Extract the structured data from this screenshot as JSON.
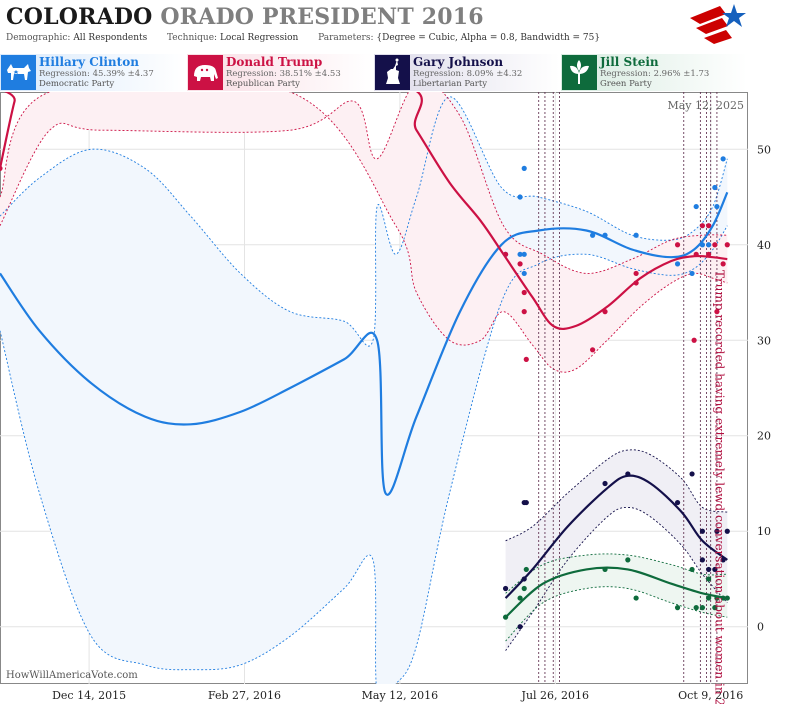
{
  "header": {
    "title_main": "COLORADO",
    "title_sub": "ORADO PRESIDENT 2016",
    "demographic_label": "Demographic:",
    "demographic_value": "All Respondents",
    "technique_label": "Technique:",
    "technique_value": "Local Regression",
    "parameters_label": "Parameters:",
    "parameters_value": "{Degree = Cubic, Alpha = 0.8, Bandwidth = 75}"
  },
  "logo": {
    "icon": "star-logo-icon",
    "colors": [
      "#cc0000",
      "#1560bd"
    ]
  },
  "legend": [
    {
      "name": "Hillary Clinton",
      "regression": "Regression: 45.39% ±4.37",
      "party": "Democratic Party",
      "color": "#1f7de0",
      "icon": "donkey-icon"
    },
    {
      "name": "Donald Trump",
      "regression": "Regression: 38.51% ±4.53",
      "party": "Republican Party",
      "color": "#cc1144",
      "icon": "elephant-icon"
    },
    {
      "name": "Gary Johnson",
      "regression": "Regression: 8.09% ±4.32",
      "party": "Libertarian Party",
      "color": "#14104a",
      "icon": "liberty-statue-icon"
    },
    {
      "name": "Jill Stein",
      "regression": "Regression: 2.96% ±1.73",
      "party": "Green Party",
      "color": "#0e6b3c",
      "icon": "leaf-icon"
    }
  ],
  "chart_data": {
    "type": "line",
    "date_label": "May 12, 2025",
    "watermark": "HowWillAmericaVote.com",
    "x_ticks": [
      "Dec 14, 2015",
      "Feb 27, 2016",
      "May 12, 2016",
      "Jul 26, 2016",
      "Oct 9, 2016"
    ],
    "x_range": [
      "2015-11-01",
      "2016-10-27"
    ],
    "y_ticks": [
      0,
      10,
      20,
      30,
      40,
      50
    ],
    "y_range": [
      -6,
      56
    ],
    "grid": true,
    "annotation": {
      "text": "Trump recorded having extremely lewd conversation about women in 2005",
      "date": "2016-10-07"
    },
    "event_lines": [
      "2016-07-18",
      "2016-07-21",
      "2016-07-25",
      "2016-07-28",
      "2016-09-26",
      "2016-10-04",
      "2016-10-07",
      "2016-10-09",
      "2016-10-12"
    ],
    "series": [
      {
        "name": "Hillary Clinton",
        "color": "#1f7de0",
        "trend": [
          [
            "2015-11-01",
            37
          ],
          [
            "2015-11-20",
            31
          ],
          [
            "2015-12-15",
            25.5
          ],
          [
            "2016-01-10",
            22
          ],
          [
            "2016-02-01",
            21.2
          ],
          [
            "2016-02-25",
            22.5
          ],
          [
            "2016-03-20",
            25
          ],
          [
            "2016-04-15",
            28
          ],
          [
            "2016-05-01",
            30
          ],
          [
            "2016-05-05",
            14
          ],
          [
            "2016-05-20",
            22
          ],
          [
            "2016-06-10",
            33
          ],
          [
            "2016-06-30",
            40
          ],
          [
            "2016-07-18",
            41.5
          ],
          [
            "2016-08-10",
            41.5
          ],
          [
            "2016-09-01",
            39.5
          ],
          [
            "2016-09-20",
            38.7
          ],
          [
            "2016-10-01",
            39.5
          ],
          [
            "2016-10-10",
            42
          ],
          [
            "2016-10-17",
            45.5
          ]
        ],
        "upper": [
          [
            "2015-11-01",
            43
          ],
          [
            "2015-11-20",
            47
          ],
          [
            "2015-12-15",
            50
          ],
          [
            "2016-01-10",
            48
          ],
          [
            "2016-02-01",
            43
          ],
          [
            "2016-02-25",
            37
          ],
          [
            "2016-03-20",
            33
          ],
          [
            "2016-04-15",
            32
          ],
          [
            "2016-04-29",
            30
          ],
          [
            "2016-05-01",
            44
          ],
          [
            "2016-05-10",
            39
          ],
          [
            "2016-05-20",
            45
          ],
          [
            "2016-06-05",
            55.5
          ],
          [
            "2016-06-30",
            46
          ],
          [
            "2016-07-18",
            45
          ],
          [
            "2016-08-10",
            43.5
          ],
          [
            "2016-09-01",
            41
          ],
          [
            "2016-09-20",
            40.5
          ],
          [
            "2016-10-01",
            41.5
          ],
          [
            "2016-10-10",
            44
          ],
          [
            "2016-10-17",
            49
          ]
        ],
        "lower": [
          [
            "2015-11-01",
            31
          ],
          [
            "2015-11-20",
            14
          ],
          [
            "2015-12-15",
            -1
          ],
          [
            "2016-01-10",
            -4
          ],
          [
            "2016-02-01",
            -4.5
          ],
          [
            "2016-02-25",
            -4
          ],
          [
            "2016-03-20",
            -1
          ],
          [
            "2016-04-15",
            4
          ],
          [
            "2016-04-29",
            7
          ],
          [
            "2016-05-01",
            -7
          ],
          [
            "2016-05-10",
            -6
          ],
          [
            "2016-05-20",
            -2
          ],
          [
            "2016-06-05",
            14
          ],
          [
            "2016-06-30",
            34
          ],
          [
            "2016-07-18",
            38
          ],
          [
            "2016-08-10",
            39
          ],
          [
            "2016-09-01",
            37.5
          ],
          [
            "2016-09-20",
            36.8
          ],
          [
            "2016-10-01",
            37.5
          ],
          [
            "2016-10-10",
            39.5
          ],
          [
            "2016-10-17",
            42
          ]
        ],
        "points": [
          [
            "2016-07-02",
            39
          ],
          [
            "2016-07-09",
            39
          ],
          [
            "2016-07-09",
            45
          ],
          [
            "2016-07-11",
            39
          ],
          [
            "2016-07-11",
            48
          ],
          [
            "2016-07-11",
            37
          ],
          [
            "2016-08-13",
            41
          ],
          [
            "2016-08-19",
            41
          ],
          [
            "2016-09-03",
            41
          ],
          [
            "2016-09-23",
            38
          ],
          [
            "2016-09-30",
            37
          ],
          [
            "2016-10-02",
            44
          ],
          [
            "2016-10-05",
            40
          ],
          [
            "2016-10-08",
            40
          ],
          [
            "2016-10-11",
            46
          ],
          [
            "2016-10-12",
            44
          ],
          [
            "2016-10-15",
            49
          ]
        ]
      },
      {
        "name": "Donald Trump",
        "color": "#cc1144",
        "trend": [
          [
            "2015-11-01",
            48
          ],
          [
            "2015-11-08",
            55
          ],
          [
            "2015-11-12",
            57
          ],
          [
            "2016-05-05",
            57
          ],
          [
            "2016-05-20",
            52
          ],
          [
            "2016-06-05",
            46.5
          ],
          [
            "2016-06-20",
            42.5
          ],
          [
            "2016-07-01",
            39
          ],
          [
            "2016-07-15",
            34.5
          ],
          [
            "2016-07-25",
            31.5
          ],
          [
            "2016-08-05",
            31.5
          ],
          [
            "2016-08-20",
            33.5
          ],
          [
            "2016-09-05",
            36.5
          ],
          [
            "2016-09-20",
            38.3
          ],
          [
            "2016-10-01",
            38.8
          ],
          [
            "2016-10-10",
            38.7
          ],
          [
            "2016-10-17",
            38.5
          ]
        ],
        "upper": [
          [
            "2015-11-01",
            42
          ],
          [
            "2015-11-25",
            52
          ],
          [
            "2015-12-20",
            52
          ],
          [
            "2016-03-20",
            52
          ],
          [
            "2016-04-20",
            55
          ],
          [
            "2016-05-01",
            49
          ],
          [
            "2016-05-20",
            57
          ],
          [
            "2016-06-10",
            53.5
          ],
          [
            "2016-07-01",
            42
          ],
          [
            "2016-07-20",
            39
          ],
          [
            "2016-08-10",
            37
          ],
          [
            "2016-09-01",
            38.5
          ],
          [
            "2016-09-20",
            40.5
          ],
          [
            "2016-10-05",
            41
          ],
          [
            "2016-10-17",
            41
          ]
        ],
        "lower": [
          [
            "2015-11-01",
            45
          ],
          [
            "2015-11-25",
            56
          ],
          [
            "2016-03-20",
            56
          ],
          [
            "2016-05-10",
            42
          ],
          [
            "2016-05-20",
            35
          ],
          [
            "2016-06-05",
            30
          ],
          [
            "2016-06-20",
            30
          ],
          [
            "2016-07-01",
            33
          ],
          [
            "2016-07-15",
            29.5
          ],
          [
            "2016-07-25",
            27
          ],
          [
            "2016-08-05",
            27
          ],
          [
            "2016-08-20",
            30
          ],
          [
            "2016-09-05",
            33.5
          ],
          [
            "2016-09-20",
            36
          ],
          [
            "2016-10-01",
            37
          ],
          [
            "2016-10-10",
            36.5
          ],
          [
            "2016-10-17",
            36
          ]
        ],
        "points": [
          [
            "2015-11-01",
            48
          ],
          [
            "2016-07-02",
            39
          ],
          [
            "2016-07-09",
            38
          ],
          [
            "2016-07-11",
            35
          ],
          [
            "2016-07-11",
            33
          ],
          [
            "2016-07-12",
            28
          ],
          [
            "2016-08-13",
            29
          ],
          [
            "2016-08-19",
            33
          ],
          [
            "2016-09-03",
            36
          ],
          [
            "2016-09-03",
            37
          ],
          [
            "2016-09-23",
            40
          ],
          [
            "2016-10-01",
            30
          ],
          [
            "2016-10-02",
            39
          ],
          [
            "2016-10-05",
            42
          ],
          [
            "2016-10-08",
            42
          ],
          [
            "2016-10-08",
            39
          ],
          [
            "2016-10-11",
            40
          ],
          [
            "2016-10-12",
            33
          ],
          [
            "2016-10-15",
            38
          ],
          [
            "2016-10-17",
            40
          ]
        ]
      },
      {
        "name": "Gary Johnson",
        "color": "#14104a",
        "trend": [
          [
            "2016-07-02",
            3
          ],
          [
            "2016-07-15",
            6
          ],
          [
            "2016-08-01",
            10.5
          ],
          [
            "2016-08-20",
            14.5
          ],
          [
            "2016-08-30",
            15.8
          ],
          [
            "2016-09-10",
            15
          ],
          [
            "2016-09-25",
            12
          ],
          [
            "2016-10-05",
            9
          ],
          [
            "2016-10-17",
            7
          ]
        ],
        "upper": [
          [
            "2016-07-02",
            9
          ],
          [
            "2016-07-15",
            10.5
          ],
          [
            "2016-08-01",
            14
          ],
          [
            "2016-08-20",
            17.5
          ],
          [
            "2016-08-30",
            18.5
          ],
          [
            "2016-09-10",
            18
          ],
          [
            "2016-09-25",
            15.5
          ],
          [
            "2016-10-05",
            12.5
          ],
          [
            "2016-10-17",
            12
          ]
        ],
        "lower": [
          [
            "2016-07-02",
            -2.5
          ],
          [
            "2016-07-15",
            1.5
          ],
          [
            "2016-08-01",
            7
          ],
          [
            "2016-08-20",
            11.5
          ],
          [
            "2016-08-30",
            12.5
          ],
          [
            "2016-09-10",
            11.5
          ],
          [
            "2016-09-25",
            8.5
          ],
          [
            "2016-10-05",
            5.5
          ],
          [
            "2016-10-17",
            2.5
          ]
        ],
        "points": [
          [
            "2016-07-02",
            4
          ],
          [
            "2016-07-09",
            0
          ],
          [
            "2016-07-11",
            5
          ],
          [
            "2016-07-11",
            13
          ],
          [
            "2016-07-12",
            13
          ],
          [
            "2016-08-19",
            15
          ],
          [
            "2016-08-30",
            16
          ],
          [
            "2016-09-23",
            13
          ],
          [
            "2016-09-30",
            16
          ],
          [
            "2016-10-05",
            10
          ],
          [
            "2016-10-05",
            7
          ],
          [
            "2016-10-08",
            6
          ],
          [
            "2016-10-11",
            6
          ],
          [
            "2016-10-12",
            10
          ],
          [
            "2016-10-15",
            7
          ],
          [
            "2016-10-17",
            10
          ]
        ]
      },
      {
        "name": "Jill Stein",
        "color": "#0e6b3c",
        "trend": [
          [
            "2016-07-02",
            1
          ],
          [
            "2016-07-20",
            4.5
          ],
          [
            "2016-08-10",
            6
          ],
          [
            "2016-08-30",
            6
          ],
          [
            "2016-09-20",
            4.5
          ],
          [
            "2016-10-05",
            3.5
          ],
          [
            "2016-10-17",
            3
          ]
        ],
        "upper": [
          [
            "2016-07-02",
            3.5
          ],
          [
            "2016-07-20",
            6.5
          ],
          [
            "2016-08-10",
            7.5
          ],
          [
            "2016-08-30",
            7.5
          ],
          [
            "2016-09-20",
            6.5
          ],
          [
            "2016-10-05",
            5.5
          ],
          [
            "2016-10-17",
            5.5
          ]
        ],
        "lower": [
          [
            "2016-07-02",
            -1.5
          ],
          [
            "2016-07-20",
            2.5
          ],
          [
            "2016-08-10",
            4
          ],
          [
            "2016-08-30",
            4
          ],
          [
            "2016-09-20",
            2.5
          ],
          [
            "2016-10-05",
            1.5
          ],
          [
            "2016-10-17",
            1
          ]
        ],
        "points": [
          [
            "2016-07-02",
            1
          ],
          [
            "2016-07-09",
            3
          ],
          [
            "2016-07-11",
            4
          ],
          [
            "2016-07-12",
            6
          ],
          [
            "2016-08-19",
            6
          ],
          [
            "2016-08-30",
            7
          ],
          [
            "2016-09-03",
            3
          ],
          [
            "2016-09-23",
            2
          ],
          [
            "2016-09-30",
            6
          ],
          [
            "2016-10-02",
            2
          ],
          [
            "2016-10-05",
            2
          ],
          [
            "2016-10-08",
            5
          ],
          [
            "2016-10-08",
            3
          ],
          [
            "2016-10-11",
            2
          ],
          [
            "2016-10-12",
            3
          ],
          [
            "2016-10-15",
            3
          ],
          [
            "2016-10-17",
            3
          ]
        ]
      }
    ]
  }
}
